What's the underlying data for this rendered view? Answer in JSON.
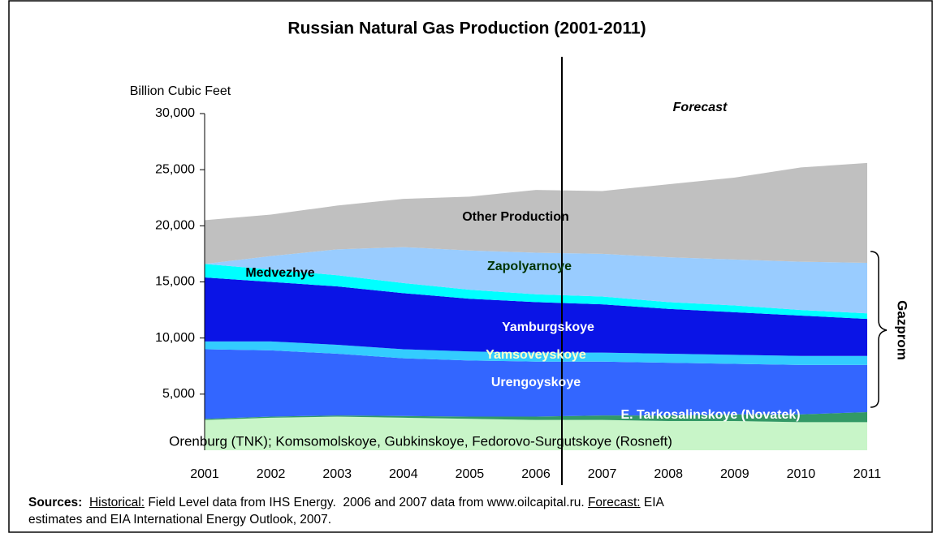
{
  "chart_data": {
    "type": "stacked_area",
    "title": "Russian Natural Gas Production (2001-2011)",
    "y_axis_label": "Billion Cubic Feet",
    "annotation": "Forecast",
    "bracket_label": "Gazprom",
    "categories": [
      "2001",
      "2002",
      "2003",
      "2004",
      "2005",
      "2006",
      "2007",
      "2008",
      "2009",
      "2010",
      "2011"
    ],
    "ylim": [
      0,
      30000
    ],
    "yticks": [
      {
        "value": 5000,
        "label": "5,000"
      },
      {
        "value": 10000,
        "label": "10,000"
      },
      {
        "value": 15000,
        "label": "15,000"
      },
      {
        "value": 20000,
        "label": "20,000"
      },
      {
        "value": 25000,
        "label": "25,000"
      },
      {
        "value": 30000,
        "label": "30,000"
      }
    ],
    "series": [
      {
        "name": "Orenburg (TNK); Komsomolskoye, Gubkinskoye, Fedorovo-Surgutskoye (Rosneft)",
        "color": "#c8f5c8",
        "label_color": "#000000",
        "values": [
          2700,
          2900,
          3000,
          2900,
          2800,
          2700,
          2700,
          2600,
          2600,
          2500,
          2500
        ]
      },
      {
        "name": "E. Tarkosalinskoye (Novatek)",
        "color": "#339966",
        "label_color": "#ffffff",
        "values": [
          100,
          100,
          100,
          150,
          200,
          300,
          400,
          500,
          600,
          700,
          900
        ]
      },
      {
        "name": "Urengoyskoye",
        "color": "#3366ff",
        "label_color": "#ffffff",
        "values": [
          6200,
          5900,
          5500,
          5150,
          5000,
          4900,
          4800,
          4700,
          4500,
          4400,
          4200
        ]
      },
      {
        "name": "Yamsoveyskoye",
        "color": "#33ccff",
        "label_color": "#ffffcc",
        "values": [
          700,
          800,
          800,
          800,
          800,
          800,
          800,
          800,
          800,
          800,
          800
        ]
      },
      {
        "name": "Yamburgskoye",
        "color": "#0a14e6",
        "label_color": "#ffffff",
        "values": [
          5700,
          5300,
          5200,
          5000,
          4700,
          4500,
          4300,
          4000,
          3800,
          3600,
          3300
        ]
      },
      {
        "name": "Medvezhye",
        "color": "#00ffff",
        "label_color": "#000000",
        "values": [
          1200,
          1100,
          1000,
          900,
          800,
          700,
          700,
          600,
          600,
          500,
          500
        ]
      },
      {
        "name": "Zapolyarnoye",
        "color": "#99ccff",
        "label_color": "#003300",
        "values": [
          0,
          1200,
          2300,
          3200,
          3500,
          3700,
          3800,
          4000,
          4100,
          4300,
          4500
        ]
      },
      {
        "name": "Other Production",
        "color": "#c0c0c0",
        "label_color": "#000000",
        "values": [
          3900,
          3700,
          3900,
          4300,
          4800,
          5600,
          5600,
          6500,
          7300,
          8400,
          8900
        ]
      }
    ],
    "sources": [
      [
        {
          "text": "Sources:",
          "style": "bold"
        },
        {
          "text": "  ",
          "style": "normal"
        },
        {
          "text": "Historical:",
          "style": "underline"
        },
        {
          "text": " Field Level data from IHS Energy.  2006 and 2007 data from www.oilcapital.ru. ",
          "style": "normal"
        },
        {
          "text": "Forecast:",
          "style": "underline"
        },
        {
          "text": " EIA",
          "style": "normal"
        }
      ],
      [
        {
          "text": "estimates and EIA International Energy Outlook, 2007.",
          "style": "normal"
        }
      ]
    ]
  }
}
